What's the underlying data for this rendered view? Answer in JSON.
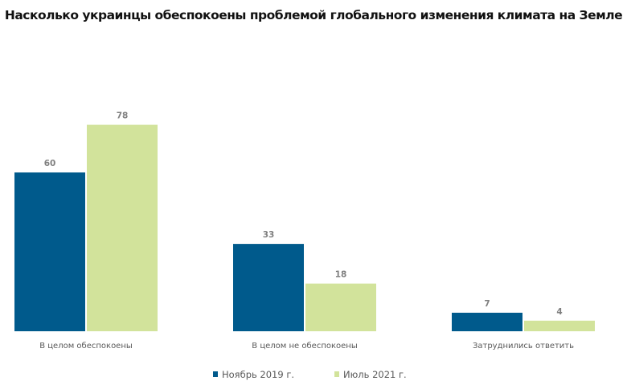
{
  "chart_data": {
    "type": "bar",
    "title": "Насколько украинцы обеспокоены проблемой глобального изменения климата на Земле",
    "categories": [
      "В целом обеспокоены",
      "В целом не обеспокоены",
      "Затруднились ответить"
    ],
    "series": [
      {
        "name": "Ноябрь 2019 г.",
        "values": [
          60,
          33,
          7
        ],
        "color": "#005a8c"
      },
      {
        "name": "Июль 2021 г.",
        "values": [
          78,
          18,
          4
        ],
        "color": "#d2e39b"
      }
    ],
    "ylim": [
      0,
      80
    ],
    "grid": false,
    "legend_position": "bottom",
    "data_labels": true
  }
}
